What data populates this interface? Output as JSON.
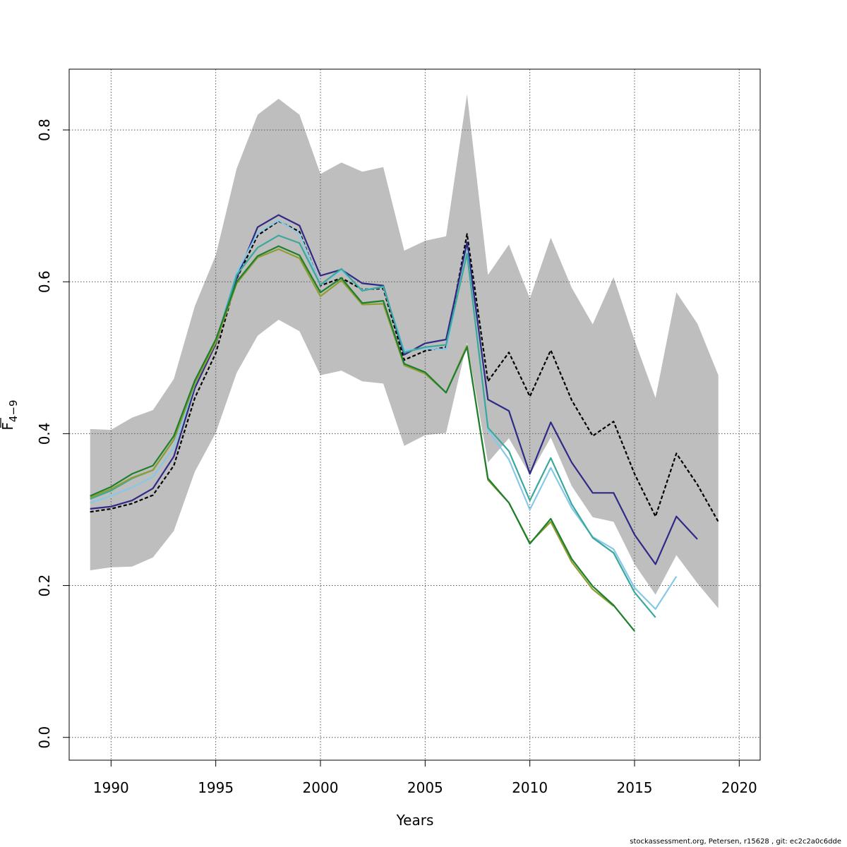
{
  "chart_data": {
    "type": "line",
    "title": "",
    "xlabel": "Years",
    "ylabel_main": "F",
    "ylabel_sub": "4−9",
    "xlim": [
      1988,
      2021
    ],
    "ylim": [
      -0.03,
      0.88
    ],
    "xticks": [
      1990,
      1995,
      2000,
      2005,
      2010,
      2015,
      2020
    ],
    "yticks": [
      0.0,
      0.2,
      0.4,
      0.6,
      0.8
    ],
    "ytick_labels": [
      "0.0",
      "0.2",
      "0.4",
      "0.6",
      "0.8"
    ],
    "grid": true,
    "legend": "none",
    "band": {
      "color": "#bebebe",
      "x": [
        1989,
        1990,
        1991,
        1992,
        1993,
        1994,
        1995,
        1996,
        1997,
        1998,
        1999,
        2000,
        2001,
        2002,
        2003,
        2004,
        2005,
        2006,
        2007,
        2008,
        2009,
        2010,
        2011,
        2012,
        2013,
        2014,
        2015,
        2016,
        2017,
        2018,
        2019
      ],
      "upper": [
        0.406,
        0.405,
        0.421,
        0.431,
        0.472,
        0.568,
        0.635,
        0.749,
        0.82,
        0.841,
        0.82,
        0.742,
        0.757,
        0.745,
        0.751,
        0.641,
        0.654,
        0.66,
        0.847,
        0.609,
        0.649,
        0.578,
        0.658,
        0.592,
        0.544,
        0.606,
        0.523,
        0.447,
        0.586,
        0.545,
        0.477
      ],
      "lower": [
        0.22,
        0.224,
        0.225,
        0.237,
        0.272,
        0.35,
        0.401,
        0.48,
        0.529,
        0.55,
        0.535,
        0.477,
        0.483,
        0.469,
        0.466,
        0.384,
        0.398,
        0.401,
        0.52,
        0.362,
        0.394,
        0.346,
        0.395,
        0.331,
        0.29,
        0.284,
        0.228,
        0.188,
        0.24,
        0.203,
        0.17
      ]
    },
    "series": [
      {
        "color": "#000000",
        "dashed": true,
        "x": [
          1989,
          1990,
          1991,
          1992,
          1993,
          1994,
          1995,
          1996,
          1997,
          1998,
          1999,
          2000,
          2001,
          2002,
          2003,
          2004,
          2005,
          2006,
          2007,
          2008,
          2009,
          2010,
          2011,
          2012,
          2013,
          2014,
          2015,
          2016,
          2017,
          2018,
          2019
        ],
        "values": [
          0.297,
          0.301,
          0.308,
          0.319,
          0.358,
          0.447,
          0.506,
          0.604,
          0.661,
          0.68,
          0.666,
          0.595,
          0.605,
          0.59,
          0.591,
          0.497,
          0.509,
          0.514,
          0.663,
          0.469,
          0.507,
          0.449,
          0.51,
          0.444,
          0.397,
          0.416,
          0.347,
          0.291,
          0.374,
          0.333,
          0.284
        ]
      },
      {
        "color": "#2e2a86",
        "dashed": false,
        "x": [
          1989,
          1990,
          1991,
          1992,
          1993,
          1994,
          1995,
          1996,
          1997,
          1998,
          1999,
          2000,
          2001,
          2002,
          2003,
          2004,
          2005,
          2006,
          2007,
          2008,
          2009,
          2010,
          2011,
          2012,
          2013,
          2014,
          2015,
          2016,
          2017,
          2018
        ],
        "values": [
          0.301,
          0.304,
          0.312,
          0.328,
          0.37,
          0.46,
          0.518,
          0.605,
          0.672,
          0.688,
          0.674,
          0.608,
          0.616,
          0.598,
          0.595,
          0.504,
          0.519,
          0.524,
          0.652,
          0.445,
          0.43,
          0.347,
          0.415,
          0.362,
          0.322,
          0.322,
          0.267,
          0.228,
          0.291,
          0.261
        ]
      },
      {
        "color": "#87c8e8",
        "dashed": false,
        "x": [
          1989,
          1990,
          1991,
          1992,
          1993,
          1994,
          1995,
          1996,
          1997,
          1998,
          1999,
          2000,
          2001,
          2002,
          2003,
          2004,
          2005,
          2006,
          2007,
          2008,
          2009,
          2010,
          2011,
          2012,
          2013,
          2014,
          2015,
          2016,
          2017
        ],
        "values": [
          0.309,
          0.318,
          0.329,
          0.343,
          0.382,
          0.465,
          0.521,
          0.612,
          0.664,
          0.681,
          0.663,
          0.596,
          0.615,
          0.589,
          0.593,
          0.51,
          0.512,
          0.511,
          0.641,
          0.405,
          0.366,
          0.3,
          0.355,
          0.302,
          0.264,
          0.248,
          0.197,
          0.169,
          0.212
        ]
      },
      {
        "color": "#3aa89a",
        "dashed": false,
        "x": [
          1989,
          1990,
          1991,
          1992,
          1993,
          1994,
          1995,
          1996,
          1997,
          1998,
          1999,
          2000,
          2001,
          2002,
          2003,
          2004,
          2005,
          2006,
          2007,
          2008,
          2009,
          2010,
          2011,
          2012,
          2013,
          2014,
          2015,
          2016
        ],
        "values": [
          0.314,
          0.325,
          0.341,
          0.352,
          0.392,
          0.466,
          0.521,
          0.609,
          0.645,
          0.661,
          0.651,
          0.596,
          0.617,
          0.588,
          0.594,
          0.507,
          0.514,
          0.517,
          0.637,
          0.408,
          0.377,
          0.312,
          0.368,
          0.307,
          0.263,
          0.243,
          0.191,
          0.158
        ]
      },
      {
        "color": "#8f9e30",
        "dashed": false,
        "x": [
          1989,
          1990,
          1991,
          1992,
          1993,
          1994,
          1995,
          1996,
          1997,
          1998,
          1999,
          2000,
          2001,
          2002,
          2003,
          2004,
          2005,
          2006,
          2007,
          2008,
          2009,
          2010,
          2011,
          2012,
          2013,
          2014
        ],
        "values": [
          0.316,
          0.327,
          0.342,
          0.352,
          0.392,
          0.466,
          0.52,
          0.598,
          0.632,
          0.643,
          0.631,
          0.581,
          0.602,
          0.57,
          0.571,
          0.49,
          0.479,
          0.454,
          0.516,
          0.339,
          0.309,
          0.256,
          0.284,
          0.231,
          0.195,
          0.173
        ]
      },
      {
        "color": "#1e7f2e",
        "dashed": false,
        "x": [
          1989,
          1990,
          1991,
          1992,
          1993,
          1994,
          1995,
          1996,
          1997,
          1998,
          1999,
          2000,
          2001,
          2002,
          2003,
          2004,
          2005,
          2006,
          2007,
          2008,
          2009,
          2010,
          2011,
          2012,
          2013,
          2014,
          2015
        ],
        "values": [
          0.318,
          0.33,
          0.347,
          0.358,
          0.397,
          0.47,
          0.524,
          0.6,
          0.634,
          0.647,
          0.635,
          0.586,
          0.605,
          0.572,
          0.575,
          0.492,
          0.481,
          0.454,
          0.514,
          0.341,
          0.309,
          0.255,
          0.288,
          0.235,
          0.199,
          0.174,
          0.14
        ]
      }
    ]
  },
  "footer": "stockassessment.org, Petersen, r15628 , git: ec2c2a0c6dde"
}
